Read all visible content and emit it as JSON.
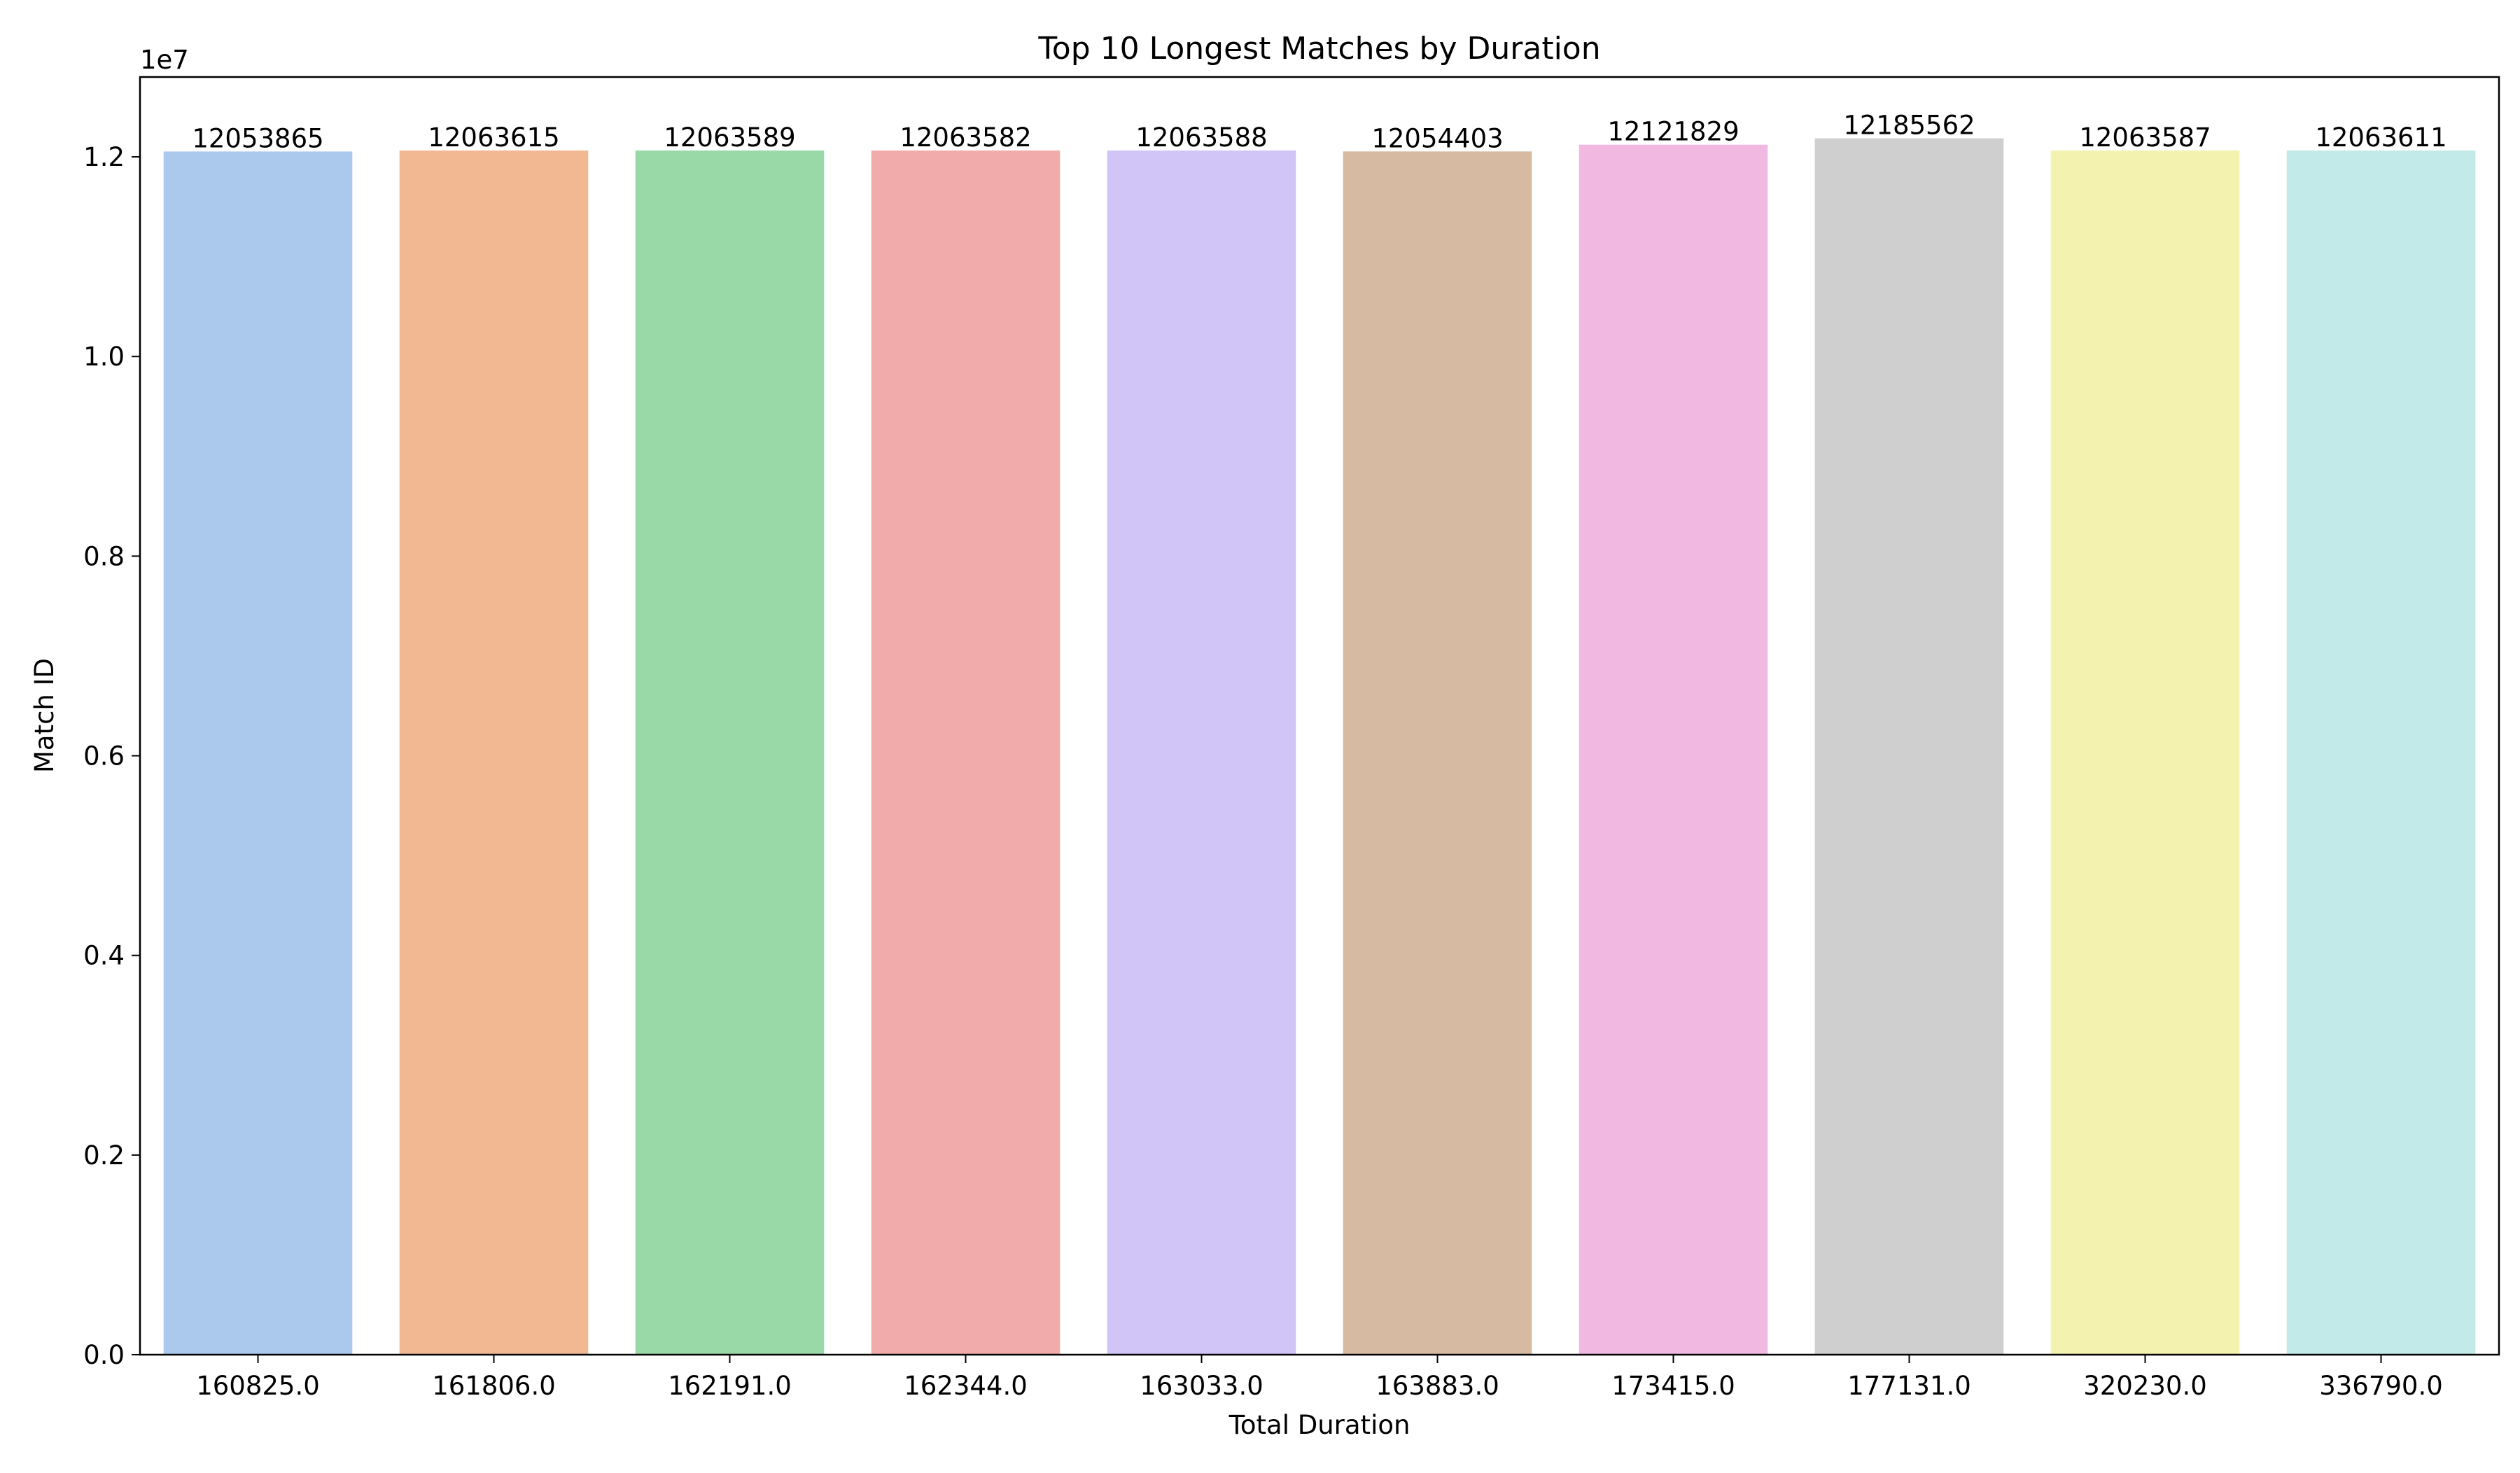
{
  "chart_data": {
    "type": "bar",
    "title": "Top 10 Longest Matches by Duration",
    "xlabel": "Total Duration",
    "ylabel": "Match ID",
    "y_offset_label": "1e7",
    "ylim": [
      0,
      12800000
    ],
    "yticks": [
      0,
      2000000,
      4000000,
      6000000,
      8000000,
      10000000,
      12000000
    ],
    "ytick_labels": [
      "0.0",
      "0.2",
      "0.4",
      "0.6",
      "0.8",
      "1.0",
      "1.2"
    ],
    "grid": false,
    "legend": "none",
    "categories": [
      "160825.0",
      "161806.0",
      "162191.0",
      "162344.0",
      "163033.0",
      "163883.0",
      "173415.0",
      "177131.0",
      "320230.0",
      "336790.0"
    ],
    "values": [
      12053865,
      12063615,
      12063589,
      12063582,
      12063588,
      12054403,
      12121829,
      12185562,
      12063587,
      12063611
    ],
    "data_labels": [
      "12053865",
      "12063615",
      "12063589",
      "12063582",
      "12063588",
      "12054403",
      "12121829",
      "12185562",
      "12063587",
      "12063611"
    ],
    "colors": [
      "#abc9ed",
      "#f1b892",
      "#99d9a7",
      "#f2abab",
      "#d1c4f6",
      "#d6bba2",
      "#f1b9e1",
      "#cfcfcf",
      "#f3f2af",
      "#c1eae8"
    ]
  }
}
